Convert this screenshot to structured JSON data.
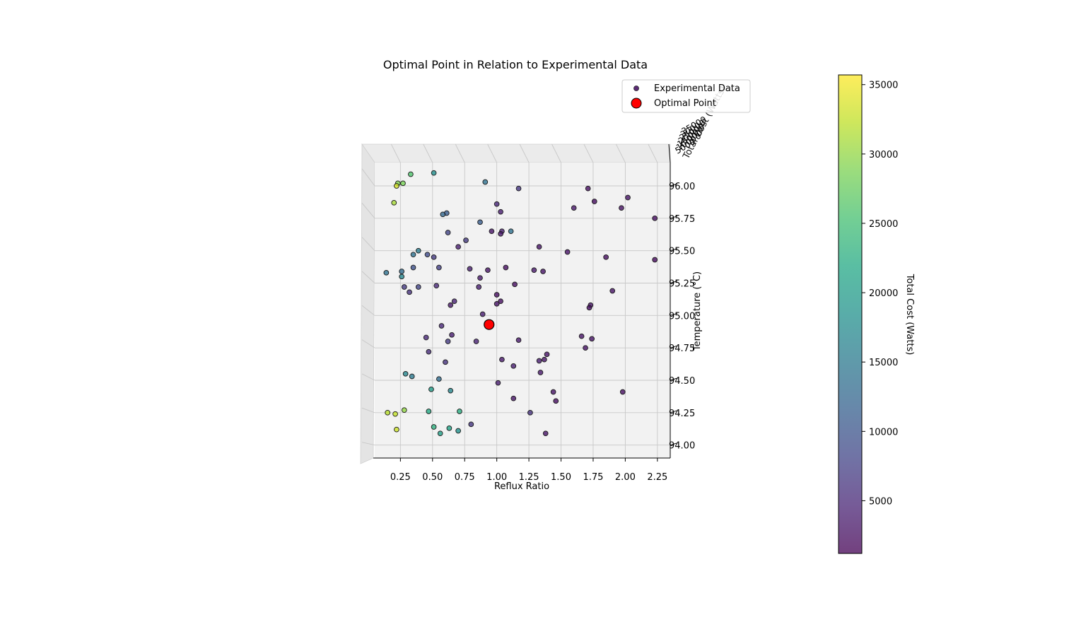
{
  "chart_data": {
    "type": "scatter",
    "title": "Optimal Point in Relation to Experimental Data",
    "xlabel": "Reflux Ratio",
    "ylabel": "Temperature (°C)",
    "zlabel": "Total Cost (Watts)",
    "xlim": [
      0.05,
      2.35
    ],
    "ylim": [
      93.9,
      96.18
    ],
    "x_ticks": [
      "0.25",
      "0.50",
      "0.75",
      "1.00",
      "1.25",
      "1.50",
      "1.75",
      "2.00",
      "2.25"
    ],
    "y_ticks": [
      "94.00",
      "94.25",
      "94.50",
      "94.75",
      "95.00",
      "95.25",
      "95.50",
      "95.75",
      "96.00"
    ],
    "z_ticks": [
      "5000",
      "10000",
      "15000",
      "20000",
      "25000",
      "30000",
      "35000"
    ],
    "legend": {
      "placement": "top-right",
      "entries": [
        "Experimental Data",
        "Optimal Point"
      ]
    },
    "colorbar": {
      "label": "Total Cost (Watts)",
      "ticks": [
        "5000",
        "10000",
        "15000",
        "20000",
        "25000",
        "30000",
        "35000"
      ],
      "range": [
        1200,
        35700
      ],
      "colormap": "viridis"
    },
    "grid": true,
    "view": "top-down 3D",
    "series": [
      {
        "name": "Experimental Data",
        "points": [
          {
            "x": 0.51,
            "y": 96.1,
            "cost": 18000
          },
          {
            "x": 0.33,
            "y": 96.09,
            "cost": 26000
          },
          {
            "x": 0.23,
            "y": 96.02,
            "cost": 29000
          },
          {
            "x": 0.27,
            "y": 96.02,
            "cost": 28500
          },
          {
            "x": 0.22,
            "y": 96.0,
            "cost": 33500
          },
          {
            "x": 0.2,
            "y": 95.87,
            "cost": 31000
          },
          {
            "x": 0.91,
            "y": 96.03,
            "cost": 14000
          },
          {
            "x": 1.17,
            "y": 95.98,
            "cost": 6500
          },
          {
            "x": 1.71,
            "y": 95.98,
            "cost": 2500
          },
          {
            "x": 2.02,
            "y": 95.91,
            "cost": 3000
          },
          {
            "x": 1.76,
            "y": 95.88,
            "cost": 2200
          },
          {
            "x": 1.6,
            "y": 95.83,
            "cost": 3500
          },
          {
            "x": 1.97,
            "y": 95.83,
            "cost": 2800
          },
          {
            "x": 2.23,
            "y": 95.75,
            "cost": 2500
          },
          {
            "x": 1.0,
            "y": 95.86,
            "cost": 5000
          },
          {
            "x": 1.03,
            "y": 95.8,
            "cost": 4000
          },
          {
            "x": 0.61,
            "y": 95.79,
            "cost": 11000
          },
          {
            "x": 0.58,
            "y": 95.78,
            "cost": 12500
          },
          {
            "x": 0.87,
            "y": 95.72,
            "cost": 11000
          },
          {
            "x": 0.62,
            "y": 95.64,
            "cost": 8000
          },
          {
            "x": 0.96,
            "y": 95.65,
            "cost": 3000
          },
          {
            "x": 1.04,
            "y": 95.65,
            "cost": 4000
          },
          {
            "x": 1.03,
            "y": 95.63,
            "cost": 3500
          },
          {
            "x": 1.11,
            "y": 95.65,
            "cost": 14000
          },
          {
            "x": 0.76,
            "y": 95.58,
            "cost": 7000
          },
          {
            "x": 0.7,
            "y": 95.53,
            "cost": 4000
          },
          {
            "x": 1.33,
            "y": 95.53,
            "cost": 3000
          },
          {
            "x": 1.55,
            "y": 95.49,
            "cost": 3000
          },
          {
            "x": 0.39,
            "y": 95.5,
            "cost": 15500
          },
          {
            "x": 0.35,
            "y": 95.47,
            "cost": 14000
          },
          {
            "x": 0.46,
            "y": 95.47,
            "cost": 9000
          },
          {
            "x": 0.51,
            "y": 95.45,
            "cost": 7000
          },
          {
            "x": 1.85,
            "y": 95.45,
            "cost": 2500
          },
          {
            "x": 2.23,
            "y": 95.43,
            "cost": 2000
          },
          {
            "x": 0.35,
            "y": 95.37,
            "cost": 9500
          },
          {
            "x": 0.55,
            "y": 95.37,
            "cost": 7500
          },
          {
            "x": 0.79,
            "y": 95.36,
            "cost": 4000
          },
          {
            "x": 0.93,
            "y": 95.35,
            "cost": 3000
          },
          {
            "x": 1.07,
            "y": 95.37,
            "cost": 2500
          },
          {
            "x": 1.29,
            "y": 95.35,
            "cost": 3500
          },
          {
            "x": 1.36,
            "y": 95.34,
            "cost": 3000
          },
          {
            "x": 0.14,
            "y": 95.33,
            "cost": 14000
          },
          {
            "x": 0.26,
            "y": 95.34,
            "cost": 13000
          },
          {
            "x": 0.26,
            "y": 95.3,
            "cost": 17000
          },
          {
            "x": 0.87,
            "y": 95.29,
            "cost": 3500
          },
          {
            "x": 1.14,
            "y": 95.24,
            "cost": 2500
          },
          {
            "x": 0.28,
            "y": 95.22,
            "cost": 7000
          },
          {
            "x": 0.39,
            "y": 95.22,
            "cost": 8000
          },
          {
            "x": 0.53,
            "y": 95.23,
            "cost": 5000
          },
          {
            "x": 0.86,
            "y": 95.22,
            "cost": 4000
          },
          {
            "x": 1.9,
            "y": 95.19,
            "cost": 3000
          },
          {
            "x": 0.32,
            "y": 95.18,
            "cost": 6000
          },
          {
            "x": 1.0,
            "y": 95.16,
            "cost": 2500
          },
          {
            "x": 0.67,
            "y": 95.11,
            "cost": 4500
          },
          {
            "x": 1.03,
            "y": 95.11,
            "cost": 2500
          },
          {
            "x": 0.64,
            "y": 95.08,
            "cost": 3500
          },
          {
            "x": 1.0,
            "y": 95.09,
            "cost": 3000
          },
          {
            "x": 1.73,
            "y": 95.08,
            "cost": 3000
          },
          {
            "x": 1.72,
            "y": 95.06,
            "cost": 2500
          },
          {
            "x": 0.89,
            "y": 95.01,
            "cost": 4000
          },
          {
            "x": 0.57,
            "y": 94.92,
            "cost": 5000
          },
          {
            "x": 0.65,
            "y": 94.85,
            "cost": 4000
          },
          {
            "x": 1.66,
            "y": 94.84,
            "cost": 3000
          },
          {
            "x": 0.45,
            "y": 94.83,
            "cost": 5000
          },
          {
            "x": 1.17,
            "y": 94.81,
            "cost": 3500
          },
          {
            "x": 1.74,
            "y": 94.82,
            "cost": 3000
          },
          {
            "x": 0.62,
            "y": 94.8,
            "cost": 7000
          },
          {
            "x": 0.84,
            "y": 94.8,
            "cost": 4500
          },
          {
            "x": 1.69,
            "y": 94.75,
            "cost": 3000
          },
          {
            "x": 0.47,
            "y": 94.72,
            "cost": 5500
          },
          {
            "x": 1.39,
            "y": 94.7,
            "cost": 3000
          },
          {
            "x": 1.04,
            "y": 94.66,
            "cost": 3500
          },
          {
            "x": 1.37,
            "y": 94.66,
            "cost": 3000
          },
          {
            "x": 1.33,
            "y": 94.65,
            "cost": 4000
          },
          {
            "x": 0.6,
            "y": 94.64,
            "cost": 6000
          },
          {
            "x": 1.13,
            "y": 94.61,
            "cost": 4000
          },
          {
            "x": 1.34,
            "y": 94.56,
            "cost": 3500
          },
          {
            "x": 0.29,
            "y": 94.55,
            "cost": 17000
          },
          {
            "x": 0.34,
            "y": 94.53,
            "cost": 15000
          },
          {
            "x": 0.55,
            "y": 94.51,
            "cost": 13000
          },
          {
            "x": 1.01,
            "y": 94.48,
            "cost": 4000
          },
          {
            "x": 0.49,
            "y": 94.43,
            "cost": 20000
          },
          {
            "x": 0.64,
            "y": 94.42,
            "cost": 17000
          },
          {
            "x": 1.44,
            "y": 94.41,
            "cost": 3000
          },
          {
            "x": 1.98,
            "y": 94.41,
            "cost": 2500
          },
          {
            "x": 1.13,
            "y": 94.36,
            "cost": 3000
          },
          {
            "x": 1.46,
            "y": 94.34,
            "cost": 2500
          },
          {
            "x": 0.15,
            "y": 94.25,
            "cost": 32000
          },
          {
            "x": 0.21,
            "y": 94.24,
            "cost": 32500
          },
          {
            "x": 0.28,
            "y": 94.27,
            "cost": 30000
          },
          {
            "x": 0.47,
            "y": 94.26,
            "cost": 22000
          },
          {
            "x": 0.71,
            "y": 94.26,
            "cost": 22500
          },
          {
            "x": 1.26,
            "y": 94.25,
            "cost": 6000
          },
          {
            "x": 0.8,
            "y": 94.16,
            "cost": 6500
          },
          {
            "x": 0.51,
            "y": 94.14,
            "cost": 23000
          },
          {
            "x": 0.63,
            "y": 94.13,
            "cost": 21000
          },
          {
            "x": 0.22,
            "y": 94.12,
            "cost": 33000
          },
          {
            "x": 0.7,
            "y": 94.11,
            "cost": 18500
          },
          {
            "x": 0.56,
            "y": 94.09,
            "cost": 20500
          },
          {
            "x": 1.38,
            "y": 94.09,
            "cost": 3000
          }
        ]
      },
      {
        "name": "Optimal Point",
        "color": "#ff0000",
        "points": [
          {
            "x": 0.94,
            "y": 94.93
          }
        ]
      }
    ]
  }
}
